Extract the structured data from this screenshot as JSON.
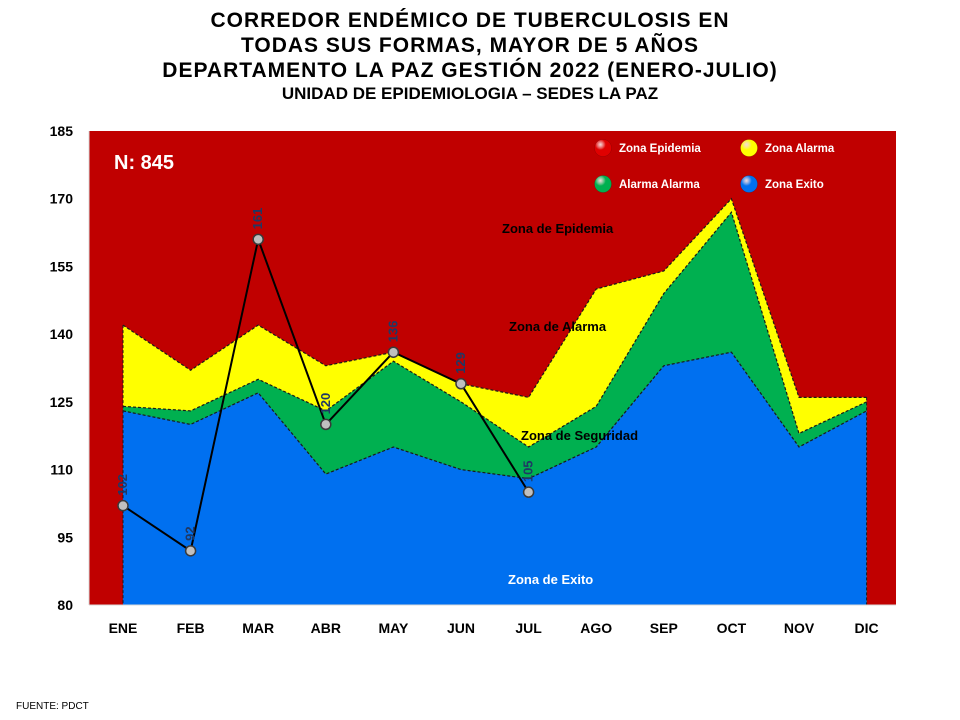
{
  "header": {
    "title_lines": [
      "CORREDOR ENDÉMICO DE TUBERCULOSIS EN",
      "TODAS SUS FORMAS, MAYOR DE 5 AÑOS",
      "DEPARTAMENTO LA PAZ GESTIÓN 2022 (ENERO-JULIO)"
    ],
    "subtitle": "UNIDAD DE EPIDEMIOLOGIA – SEDES LA PAZ"
  },
  "footer": {
    "source": "FUENTE:   PDCT"
  },
  "colors": {
    "epidemia": "#c00000",
    "alarma": "#ffff00",
    "seguridad": "#00b050",
    "exito": "#0070f0",
    "line": "#000000",
    "point_label": "#1f3864"
  },
  "chart_data": {
    "type": "area",
    "categories": [
      "ENE",
      "FEB",
      "MAR",
      "ABR",
      "MAY",
      "JUN",
      "JUL",
      "AGO",
      "SEP",
      "OCT",
      "NOV",
      "DIC"
    ],
    "ylim": [
      80,
      185
    ],
    "yticks": [
      80,
      95,
      110,
      125,
      140,
      155,
      170,
      185
    ],
    "n_label": "N: 845",
    "legend": [
      {
        "label": "Zona Epidemia",
        "color": "#e00000"
      },
      {
        "label": "Zona  Alarma",
        "color": "#ffff00"
      },
      {
        "label": "Alarma  Alarma",
        "color": "#00b050"
      },
      {
        "label": "Zona Exito",
        "color": "#0070f0"
      }
    ],
    "zone_labels": {
      "epidemia": "Zona de Epidemia",
      "alarma": "Zona de Alarma",
      "seguridad": "Zona de Seguridad",
      "exito": "Zona de Exito"
    },
    "series": [
      {
        "name": "Zona de Exito",
        "values": [
          123,
          120,
          127,
          109,
          115,
          110,
          108,
          115,
          133,
          136,
          115,
          123
        ]
      },
      {
        "name": "Zona de Seguridad",
        "values": [
          124,
          123,
          130,
          123,
          134,
          125,
          115,
          124,
          149,
          167,
          118,
          125
        ]
      },
      {
        "name": "Zona de Alarma",
        "values": [
          142,
          132,
          142,
          133,
          136,
          129,
          126,
          150,
          154,
          170,
          126,
          126
        ]
      }
    ],
    "observed": {
      "values": [
        102,
        92,
        161,
        120,
        136,
        129,
        105
      ],
      "labels": [
        "102",
        "92",
        "161",
        "120",
        "136",
        "129",
        "105"
      ]
    }
  }
}
